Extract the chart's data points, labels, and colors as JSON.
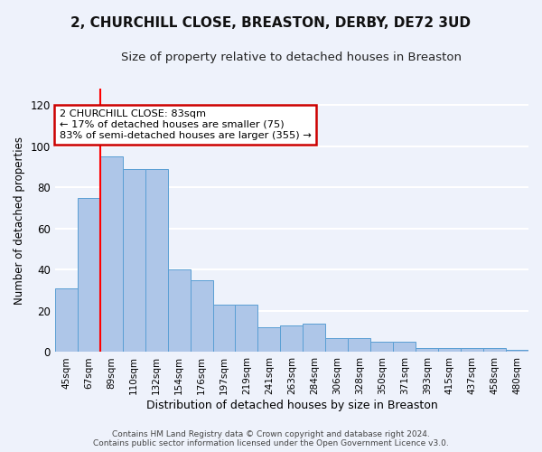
{
  "title": "2, CHURCHILL CLOSE, BREASTON, DERBY, DE72 3UD",
  "subtitle": "Size of property relative to detached houses in Breaston",
  "xlabel": "Distribution of detached houses by size in Breaston",
  "ylabel": "Number of detached properties",
  "categories": [
    "45sqm",
    "67sqm",
    "89sqm",
    "110sqm",
    "132sqm",
    "154sqm",
    "176sqm",
    "197sqm",
    "219sqm",
    "241sqm",
    "263sqm",
    "284sqm",
    "306sqm",
    "328sqm",
    "350sqm",
    "371sqm",
    "393sqm",
    "415sqm",
    "437sqm",
    "458sqm",
    "480sqm"
  ],
  "bar_values": [
    31,
    75,
    95,
    89,
    89,
    40,
    35,
    23,
    23,
    12,
    13,
    14,
    7,
    7,
    5,
    5,
    2,
    2,
    2,
    2,
    1
  ],
  "bar_color": "#aec6e8",
  "bar_edge_color": "#5a9fd4",
  "red_line_x": 2.0,
  "annotation_text": "2 CHURCHILL CLOSE: 83sqm\n← 17% of detached houses are smaller (75)\n83% of semi-detached houses are larger (355) →",
  "annotation_box_color": "#ffffff",
  "annotation_border_color": "#cc0000",
  "ylim": [
    0,
    128
  ],
  "yticks": [
    0,
    20,
    40,
    60,
    80,
    100,
    120
  ],
  "footer_line1": "Contains HM Land Registry data © Crown copyright and database right 2024.",
  "footer_line2": "Contains public sector information licensed under the Open Government Licence v3.0.",
  "bg_color": "#eef2fb",
  "plot_bg_color": "#eef2fb",
  "grid_color": "#ffffff",
  "title_fontsize": 11,
  "subtitle_fontsize": 9.5
}
